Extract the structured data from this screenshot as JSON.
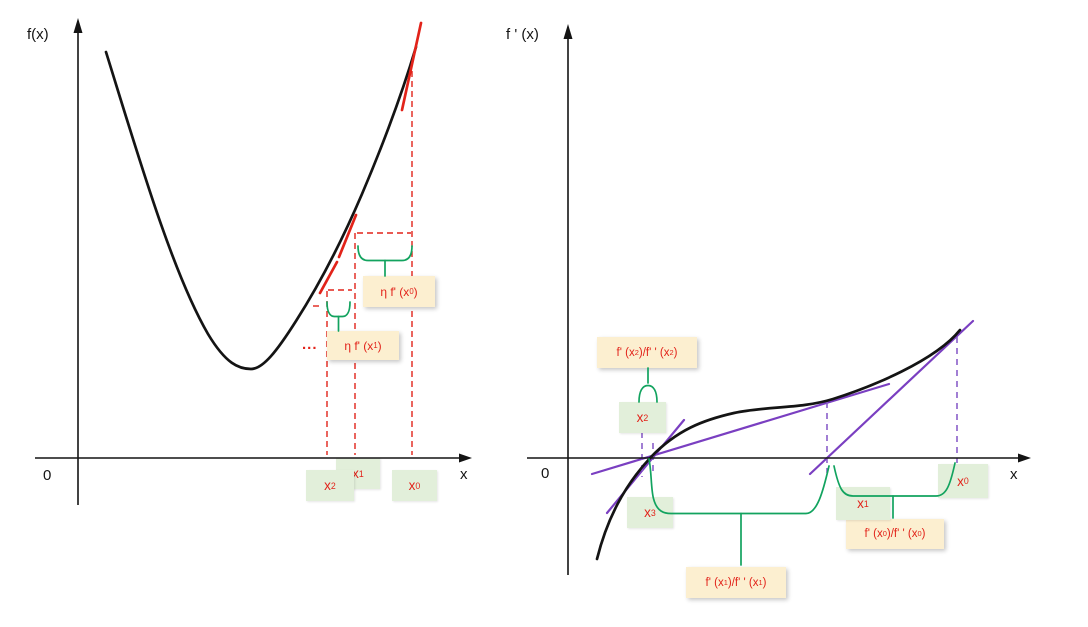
{
  "colors": {
    "red": "#e2231a",
    "green": "#12a35f",
    "purple": "#7a3fc1",
    "purple_light": "#8a5fc9",
    "ink": "#141414",
    "label_bg": "#fcefd0",
    "point_bg": "#e2efda"
  },
  "left_panel": {
    "axis": {
      "y_label": "f(x)",
      "x_label": "x",
      "origin": "0"
    },
    "ellipsis": "...",
    "labels": {
      "eta_fx0": [
        {
          "t": "η f' (x"
        },
        {
          "sub": "0"
        },
        {
          "t": ")"
        }
      ],
      "eta_fx1": [
        {
          "t": "η f' (x"
        },
        {
          "sub": "1"
        },
        {
          "t": ")"
        }
      ]
    },
    "points": {
      "x2": [
        {
          "t": "x"
        },
        {
          "sub": "2"
        }
      ],
      "x1": [
        {
          "t": "x"
        },
        {
          "sub": "1"
        }
      ],
      "x0": [
        {
          "t": "x"
        },
        {
          "sub": "0"
        }
      ]
    }
  },
  "right_panel": {
    "axis": {
      "y_label": "f ' (x)",
      "x_label": "x",
      "origin": "0"
    },
    "labels": {
      "ratio_x2": [
        {
          "t": "f' (x"
        },
        {
          "sub": "2"
        },
        {
          "t": ")/f' ' (x"
        },
        {
          "sub": "2"
        },
        {
          "t": ")"
        }
      ],
      "ratio_x1": [
        {
          "t": "f' (x"
        },
        {
          "sub": "1"
        },
        {
          "t": ")/f' ' (x"
        },
        {
          "sub": "1"
        },
        {
          "t": ")"
        }
      ],
      "ratio_x0": [
        {
          "t": "f' (x"
        },
        {
          "sub": "0"
        },
        {
          "t": ")/f' ' (x"
        },
        {
          "sub": "0"
        },
        {
          "t": ")"
        }
      ]
    },
    "points": {
      "x2": [
        {
          "t": "x"
        },
        {
          "sub": "2"
        }
      ],
      "x3": [
        {
          "t": "x"
        },
        {
          "sub": "3"
        }
      ],
      "x1": [
        {
          "t": "x"
        },
        {
          "sub": "1"
        }
      ],
      "x0": [
        {
          "t": "x"
        },
        {
          "sub": "0"
        }
      ]
    }
  }
}
